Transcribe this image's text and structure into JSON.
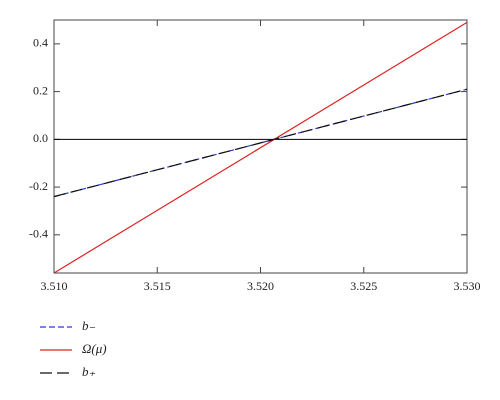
{
  "chart_data": {
    "type": "line",
    "x": [
      3.51,
      3.53
    ],
    "series": [
      {
        "name": "b₋",
        "color": "#2a3bd0",
        "dash": "6,3",
        "values": [
          -0.24,
          0.21
        ]
      },
      {
        "name": "Ω(μ)",
        "color": "#e02020",
        "dash": "none",
        "values": [
          -0.56,
          0.49
        ]
      },
      {
        "name": "b₊",
        "color": "#111111",
        "dash": "12,5",
        "values": [
          -0.24,
          0.21
        ]
      }
    ],
    "xlim": [
      3.51,
      3.53
    ],
    "ylim": [
      -0.56,
      0.5
    ],
    "xticks": [
      {
        "value": 3.51,
        "label": "3.510"
      },
      {
        "value": 3.515,
        "label": "3.515"
      },
      {
        "value": 3.52,
        "label": "3.520"
      },
      {
        "value": 3.525,
        "label": "3.525"
      },
      {
        "value": 3.53,
        "label": "3.530"
      }
    ],
    "yticks": [
      {
        "value": -0.4,
        "label": "-0.4"
      },
      {
        "value": -0.2,
        "label": "-0.2"
      },
      {
        "value": 0,
        "label": "0.0"
      },
      {
        "value": 0.2,
        "label": "0.2"
      },
      {
        "value": 0.4,
        "label": "0.4"
      }
    ],
    "legend": "below"
  }
}
